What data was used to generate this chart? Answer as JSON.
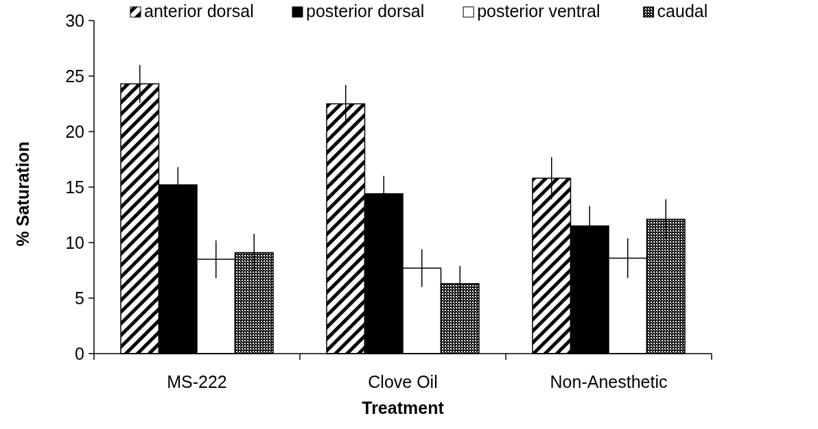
{
  "chart_data": {
    "type": "bar",
    "xlabel": "Treatment",
    "ylabel": "% Saturation",
    "categories": [
      "MS-222",
      "Clove Oil",
      "Non-Anesthetic"
    ],
    "series": [
      {
        "name": "anterior dorsal",
        "color": "#000000",
        "values": [
          24.3,
          22.5,
          15.8
        ],
        "errors": [
          1.7,
          1.7,
          1.9
        ]
      },
      {
        "name": "posterior dorsal",
        "color": "#000000",
        "values": [
          15.2,
          14.4,
          11.5
        ],
        "errors": [
          1.6,
          1.6,
          1.8
        ]
      },
      {
        "name": "posterior ventral",
        "color": "#ffffff",
        "values": [
          8.5,
          7.7,
          8.6
        ],
        "errors": [
          1.7,
          1.7,
          1.8
        ]
      },
      {
        "name": "caudal",
        "color": "#000000",
        "values": [
          9.1,
          6.3,
          12.1
        ],
        "errors": [
          1.7,
          1.6,
          1.8
        ]
      }
    ],
    "ylim": [
      0,
      30
    ],
    "yticks": [
      0,
      5,
      10,
      15,
      20,
      25,
      30
    ],
    "legend": "top",
    "grid": false
  }
}
